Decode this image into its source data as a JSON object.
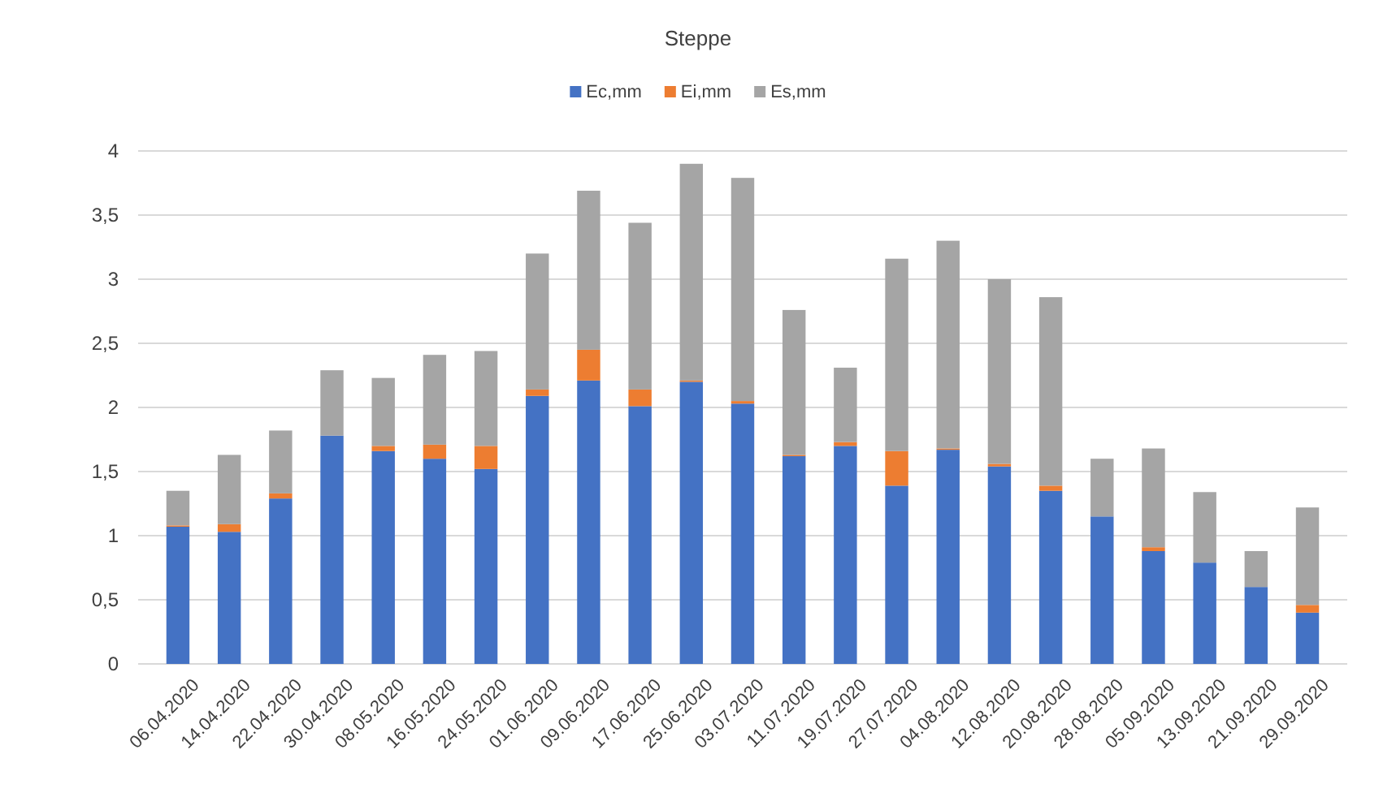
{
  "chart_data": {
    "type": "bar",
    "title": "Steppe",
    "stacked": true,
    "legend": "top",
    "grid": "y",
    "categories": [
      "06.04.2020",
      "14.04.2020",
      "22.04.2020",
      "30.04.2020",
      "08.05.2020",
      "16.05.2020",
      "24.05.2020",
      "01.06.2020",
      "09.06.2020",
      "17.06.2020",
      "25.06.2020",
      "03.07.2020",
      "11.07.2020",
      "19.07.2020",
      "27.07.2020",
      "04.08.2020",
      "12.08.2020",
      "20.08.2020",
      "28.08.2020",
      "05.09.2020",
      "13.09.2020",
      "21.09.2020",
      "29.09.2020"
    ],
    "series": [
      {
        "name": "Ec,mm",
        "color": "#4472c4",
        "values": [
          1.07,
          1.03,
          1.29,
          1.78,
          1.66,
          1.6,
          1.52,
          2.09,
          2.21,
          2.01,
          2.2,
          2.03,
          1.62,
          1.7,
          1.39,
          1.67,
          1.54,
          1.35,
          1.15,
          0.88,
          0.79,
          0.6,
          0.4
        ]
      },
      {
        "name": "Ei,mm",
        "color": "#ed7d31",
        "values": [
          0.01,
          0.06,
          0.04,
          0,
          0.04,
          0.11,
          0.18,
          0.05,
          0.24,
          0.13,
          0.01,
          0.02,
          0.01,
          0.03,
          0.27,
          0.01,
          0.02,
          0.04,
          0,
          0.03,
          0,
          0,
          0.06
        ]
      },
      {
        "name": "Es,mm",
        "color": "#a5a5a5",
        "values": [
          0.27,
          0.54,
          0.49,
          0.51,
          0.53,
          0.7,
          0.74,
          1.06,
          1.24,
          1.3,
          1.69,
          1.74,
          1.13,
          0.58,
          1.5,
          1.62,
          1.44,
          1.47,
          0.45,
          0.77,
          0.55,
          0.28,
          0.76
        ]
      }
    ],
    "ylim": [
      0,
      4
    ],
    "yticks": [
      0,
      {
        "value": 0.5,
        "label": "0,5"
      },
      1,
      {
        "value": 1.5,
        "label": "1,5"
      },
      2,
      {
        "value": 2.5,
        "label": "2,5"
      },
      3,
      {
        "value": 3.5,
        "label": "3,5"
      },
      4
    ]
  }
}
